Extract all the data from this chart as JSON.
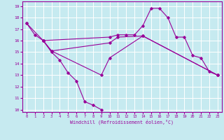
{
  "xlabel": "Windchill (Refroidissement éolien,°C)",
  "xlim": [
    -0.5,
    23.5
  ],
  "ylim": [
    9.8,
    19.4
  ],
  "yticks": [
    10,
    11,
    12,
    13,
    14,
    15,
    16,
    17,
    18,
    19
  ],
  "xticks": [
    0,
    1,
    2,
    3,
    4,
    5,
    6,
    7,
    8,
    9,
    10,
    11,
    12,
    13,
    14,
    15,
    16,
    17,
    18,
    19,
    20,
    21,
    22,
    23
  ],
  "bg_color": "#c6eaf0",
  "grid_color": "#ffffff",
  "line_color": "#990099",
  "lines": [
    {
      "x": [
        0,
        1,
        2,
        3,
        4,
        5,
        6,
        7,
        8,
        9
      ],
      "y": [
        17.5,
        16.5,
        16.0,
        15.0,
        14.3,
        13.2,
        12.5,
        10.7,
        10.4,
        10.0
      ]
    },
    {
      "x": [
        0,
        2,
        10,
        11,
        12,
        13,
        14,
        15,
        16,
        17,
        18,
        19,
        20,
        21,
        22,
        23
      ],
      "y": [
        17.5,
        16.0,
        16.3,
        16.5,
        16.5,
        16.5,
        17.3,
        18.8,
        18.8,
        18.0,
        16.3,
        16.3,
        14.7,
        14.5,
        13.3,
        13.0
      ]
    },
    {
      "x": [
        2,
        3,
        10,
        11,
        14,
        23
      ],
      "y": [
        16.0,
        15.1,
        15.8,
        16.3,
        16.4,
        13.0
      ]
    },
    {
      "x": [
        2,
        3,
        9,
        10,
        14,
        23
      ],
      "y": [
        16.0,
        15.1,
        13.0,
        14.5,
        16.4,
        13.0
      ]
    }
  ]
}
